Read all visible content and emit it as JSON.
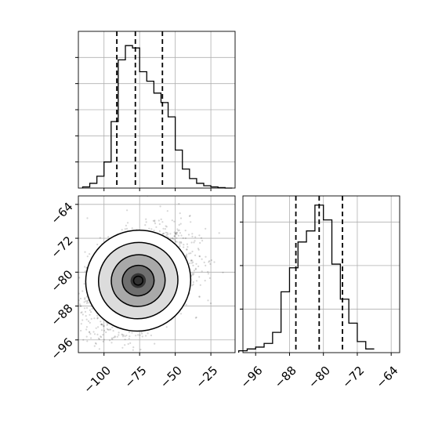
{
  "chart_data": {
    "type": "corner",
    "title": "",
    "panels": [
      {
        "id": "hist_x",
        "type": "histogram",
        "bin_edges": [
          -115,
          -110,
          -105,
          -100,
          -95,
          -90,
          -85,
          -80,
          -75,
          -70,
          -65,
          -60,
          -55,
          -50,
          -45,
          -40,
          -35,
          -30,
          -25,
          -20,
          -15,
          -10
        ],
        "counts": [
          0.5,
          2,
          5,
          11,
          28,
          54,
          60,
          59,
          49,
          45,
          40,
          36,
          30,
          16,
          8,
          4,
          2,
          1,
          0.5,
          0.2,
          0
        ],
        "quantile_lines": [
          -91,
          -78,
          -59
        ],
        "xlim": [
          -118,
          -8
        ],
        "y_max": 66,
        "grid": true
      },
      {
        "id": "hist_y",
        "type": "histogram",
        "bin_edges": [
          -100,
          -98,
          -96,
          -94,
          -92,
          -90,
          -88,
          -86,
          -84,
          -82,
          -80,
          -78,
          -76,
          -74,
          -72,
          -70,
          -68
        ],
        "counts": [
          1,
          2,
          3,
          5,
          11,
          33,
          46,
          60,
          66,
          80,
          72,
          48,
          29,
          16,
          6,
          2
        ],
        "quantile_lines": [
          -86.5,
          -81,
          -75.5
        ],
        "xlim": [
          -99,
          -62
        ],
        "x_ticks": [
          -96,
          -88,
          -80,
          -72,
          -64
        ],
        "x_tick_labels": [
          "−96",
          "−88",
          "−80",
          "−72",
          "−64"
        ],
        "y_max": 85,
        "grid": true
      },
      {
        "id": "density_2d",
        "type": "scatter_density",
        "x_range": [
          -118,
          -8
        ],
        "y_range": [
          -99,
          -62
        ],
        "x_ticks": [
          -100,
          -75,
          -50,
          -25
        ],
        "x_tick_labels": [
          "−100",
          "−75",
          "−50",
          "−25"
        ],
        "y_ticks": [
          -64,
          -72,
          -80,
          -88,
          -96
        ],
        "y_tick_labels": [
          "−64",
          "−72",
          "−80",
          "−88",
          "−96"
        ],
        "center": [
          -76,
          -82
        ],
        "spread": [
          18,
          5.8
        ],
        "correlation": 0.38,
        "contour_levels": [
          0.5,
          1,
          1.5,
          2
        ],
        "grid": true
      }
    ]
  }
}
